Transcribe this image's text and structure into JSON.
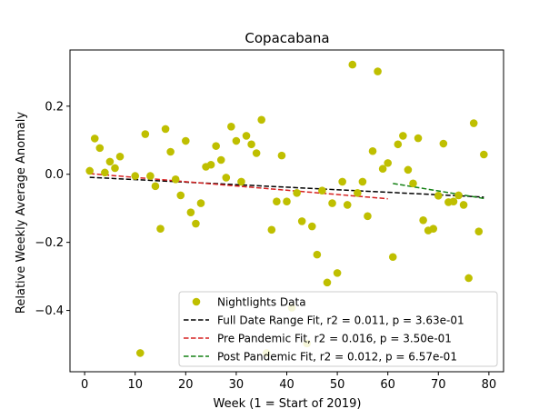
{
  "chart_data": {
    "type": "scatter",
    "title": "Copacabana",
    "xlabel": "Week (1 = Start of 2019)",
    "ylabel": "Relative Weekly Average Anomaly",
    "xlim": [
      -2.9,
      82.9
    ],
    "ylim": [
      -0.58,
      0.365
    ],
    "xticks": [
      0,
      10,
      20,
      30,
      40,
      50,
      60,
      70,
      80
    ],
    "xtick_labels": [
      "0",
      "10",
      "20",
      "30",
      "40",
      "50",
      "60",
      "70",
      "80"
    ],
    "yticks": [
      -0.4,
      -0.2,
      0.0,
      0.2
    ],
    "ytick_labels": [
      "−0.4",
      "−0.2",
      "0.0",
      "0.2"
    ],
    "legend_position": "lower-right",
    "grid": false,
    "scatter": {
      "name": "Nightlights Data",
      "color": "#bfbf00",
      "x": [
        1,
        2,
        3,
        4,
        5,
        6,
        7,
        10,
        11,
        12,
        13,
        14,
        15,
        16,
        17,
        18,
        19,
        20,
        21,
        22,
        23,
        24,
        25,
        26,
        27,
        28,
        29,
        30,
        31,
        32,
        33,
        34,
        35,
        36,
        37,
        38,
        39,
        40,
        41,
        42,
        43,
        44,
        45,
        46,
        47,
        48,
        49,
        50,
        51,
        52,
        53,
        54,
        55,
        56,
        57,
        58,
        59,
        60,
        61,
        62,
        63,
        64,
        65,
        66,
        67,
        68,
        69,
        70,
        71,
        72,
        73,
        74,
        75,
        76,
        77,
        78,
        79
      ],
      "y": [
        0.01,
        0.105,
        0.077,
        0.005,
        0.037,
        0.018,
        0.052,
        -0.005,
        -0.525,
        0.118,
        -0.005,
        -0.035,
        -0.16,
        0.133,
        0.066,
        -0.015,
        -0.062,
        0.098,
        -0.112,
        -0.145,
        -0.085,
        0.022,
        0.028,
        0.083,
        0.042,
        -0.01,
        0.14,
        0.098,
        -0.022,
        0.113,
        0.088,
        0.062,
        0.16,
        -0.525,
        -0.163,
        -0.08,
        0.055,
        -0.08,
        -0.392,
        -0.055,
        -0.138,
        -0.497,
        -0.153,
        -0.236,
        -0.048,
        -0.318,
        -0.085,
        -0.29,
        -0.022,
        -0.09,
        0.322,
        -0.055,
        -0.022,
        -0.123,
        0.068,
        0.302,
        0.016,
        0.033,
        -0.243,
        0.088,
        0.113,
        0.013,
        -0.027,
        0.106,
        -0.135,
        -0.165,
        -0.16,
        -0.063,
        0.09,
        -0.082,
        -0.08,
        -0.062,
        -0.09,
        -0.305,
        0.15,
        -0.168,
        0.058
      ]
    },
    "fit_lines": [
      {
        "name": "Full Date Range Fit, r2 = 0.011, p = 3.63e-01",
        "color": "#000000",
        "x": [
          1,
          79
        ],
        "y": [
          -0.009,
          -0.067
        ]
      },
      {
        "name": "Pre Pandemic Fit, r2 = 0.016, p = 3.50e-01",
        "color": "#d62020",
        "x": [
          1,
          60
        ],
        "y": [
          0.002,
          -0.072
        ]
      },
      {
        "name": "Post Pandemic Fit, r2 = 0.012, p = 6.57e-01",
        "color": "#138013",
        "x": [
          61,
          79
        ],
        "y": [
          -0.027,
          -0.071
        ]
      }
    ]
  }
}
